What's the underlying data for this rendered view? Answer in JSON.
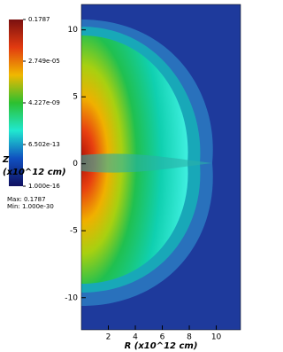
{
  "chart_data": {
    "type": "pseudocolor",
    "xlabel": "R (x10^12 cm)",
    "ylabel": [
      "Z",
      "(x10^12 cm)"
    ],
    "xlim": [
      0,
      11.8
    ],
    "xticks": [
      2,
      4,
      6,
      8,
      10
    ],
    "ylim": [
      -12.4,
      11.9
    ],
    "yticks": [
      -10,
      -5,
      0,
      5,
      10
    ],
    "colorbar": {
      "scale": "log",
      "lim": [
        1e-16,
        0.1787
      ],
      "ticks": [
        {
          "value": 0.1787,
          "label": "0.1787"
        },
        {
          "value": 2.749e-05,
          "label": "2.749e-05"
        },
        {
          "value": 4.227e-09,
          "label": "4.227e-09"
        },
        {
          "value": 6.502e-13,
          "label": "6.502e-13"
        },
        {
          "value": 1e-16,
          "label": "1.000e-16"
        }
      ],
      "colors": [
        "#7a1010",
        "#e23a10",
        "#f0b800",
        "#2cc030",
        "#20e8d0",
        "#1050c0",
        "#101060"
      ]
    },
    "max_label": "Max: 0.1787",
    "min_label": "Min: 1.000e-30"
  }
}
